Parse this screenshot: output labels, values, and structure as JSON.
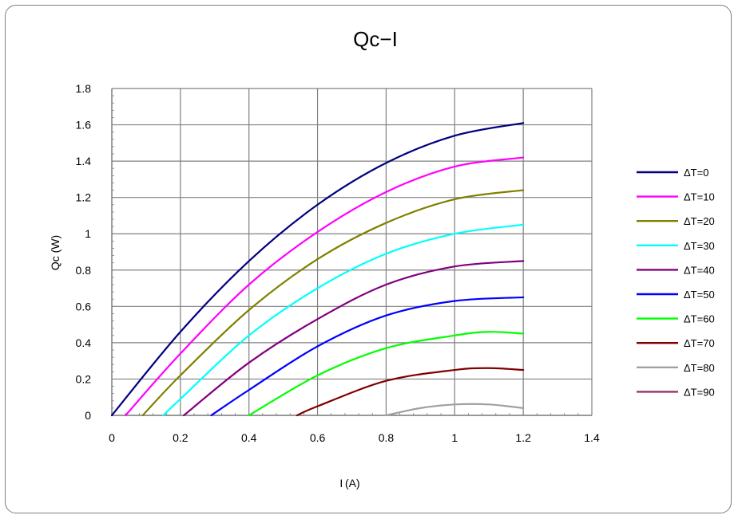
{
  "chart_data": {
    "type": "line",
    "title": "Qc−I",
    "xlabel": "I (A)",
    "ylabel": "Qc (W)",
    "xlim": [
      0,
      1.4
    ],
    "ylim": [
      0,
      1.8
    ],
    "x_ticks": [
      "0",
      "0.2",
      "0.4",
      "0.6",
      "0.8",
      "1",
      "1.2",
      "1.4"
    ],
    "y_ticks": [
      "0",
      "0.2",
      "0.4",
      "0.6",
      "0.8",
      "1",
      "1.2",
      "1.4",
      "1.6",
      "1.8"
    ],
    "grid": true,
    "legend_position": "right",
    "series": [
      {
        "name": "ΔT=0",
        "color": "#000080",
        "x": [
          0,
          0.2,
          0.4,
          0.6,
          0.8,
          1.0,
          1.2
        ],
        "y": [
          0,
          0.46,
          0.85,
          1.16,
          1.39,
          1.54,
          1.61
        ]
      },
      {
        "name": "ΔT=10",
        "color": "#ff00ff",
        "x": [
          0.04,
          0.2,
          0.4,
          0.6,
          0.8,
          1.0,
          1.2
        ],
        "y": [
          0,
          0.34,
          0.72,
          1.01,
          1.23,
          1.37,
          1.42
        ]
      },
      {
        "name": "ΔT=20",
        "color": "#808000",
        "x": [
          0.09,
          0.2,
          0.4,
          0.6,
          0.8,
          1.0,
          1.2
        ],
        "y": [
          0,
          0.22,
          0.58,
          0.86,
          1.06,
          1.19,
          1.24
        ]
      },
      {
        "name": "ΔT=30",
        "color": "#00ffff",
        "x": [
          0.15,
          0.2,
          0.4,
          0.6,
          0.8,
          1.0,
          1.2
        ],
        "y": [
          0,
          0.09,
          0.44,
          0.7,
          0.89,
          1.0,
          1.05
        ]
      },
      {
        "name": "ΔT=40",
        "color": "#800080",
        "x": [
          0.21,
          0.4,
          0.6,
          0.8,
          1.0,
          1.2
        ],
        "y": [
          0,
          0.29,
          0.53,
          0.72,
          0.82,
          0.85
        ]
      },
      {
        "name": "ΔT=50",
        "color": "#0000ff",
        "x": [
          0.29,
          0.4,
          0.6,
          0.8,
          1.0,
          1.2
        ],
        "y": [
          0,
          0.14,
          0.38,
          0.55,
          0.63,
          0.65
        ]
      },
      {
        "name": "ΔT=60",
        "color": "#00ff00",
        "x": [
          0.4,
          0.6,
          0.8,
          1.0,
          1.1,
          1.2
        ],
        "y": [
          0,
          0.22,
          0.37,
          0.44,
          0.46,
          0.45
        ]
      },
      {
        "name": "ΔT=70",
        "color": "#800000",
        "x": [
          0.54,
          0.6,
          0.8,
          1.0,
          1.1,
          1.2
        ],
        "y": [
          0,
          0.05,
          0.19,
          0.25,
          0.26,
          0.25
        ]
      },
      {
        "name": "ΔT=80",
        "color": "#a0a0a0",
        "x": [
          0.8,
          0.9,
          1.0,
          1.1,
          1.2
        ],
        "y": [
          0,
          0.04,
          0.06,
          0.06,
          0.04
        ]
      },
      {
        "name": "ΔT=90",
        "color": "#993366",
        "x": [],
        "y": []
      }
    ]
  }
}
